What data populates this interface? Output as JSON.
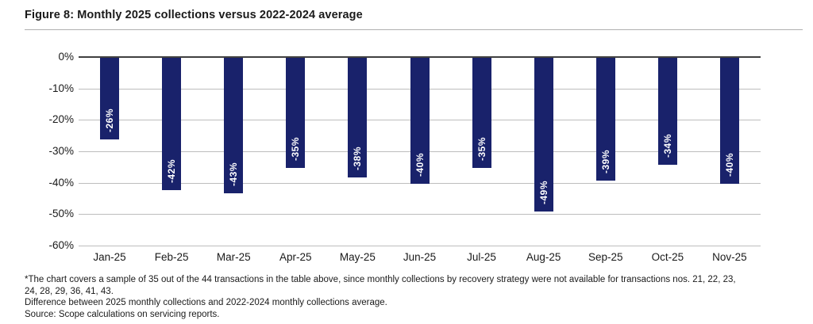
{
  "title": "Figure 8: Monthly 2025 collections versus 2022-2024 average",
  "chart_data": {
    "type": "bar",
    "title": "Figure 8: Monthly 2025 collections versus 2022-2024 average",
    "categories": [
      "Jan-25",
      "Feb-25",
      "Mar-25",
      "Apr-25",
      "May-25",
      "Jun-25",
      "Jul-25",
      "Aug-25",
      "Sep-25",
      "Oct-25",
      "Nov-25"
    ],
    "values": [
      -26,
      -42,
      -43,
      -35,
      -38,
      -40,
      -35,
      -49,
      -39,
      -34,
      -40
    ],
    "bar_labels": [
      "-26%",
      "-42%",
      "-43%",
      "-35%",
      "-38%",
      "-40%",
      "-35%",
      "-49%",
      "-39%",
      "-34%",
      "-40%"
    ],
    "y_ticks": [
      "0%",
      "-10%",
      "-20%",
      "-30%",
      "-40%",
      "-50%",
      "-60%"
    ],
    "y_tick_values": [
      0,
      -10,
      -20,
      -30,
      -40,
      -50,
      -60
    ],
    "ylim": [
      -60,
      0
    ],
    "xlabel": "",
    "ylabel": "",
    "grid": true,
    "legend_position": "none",
    "bar_color": "#19226b",
    "bar_label_color": "#ffffff",
    "gridline_color": "#bdbdbd",
    "zero_line_color": "#404040"
  },
  "footnotes": {
    "line1": "*The chart covers a sample of 35 out of the 44 transactions in the table above, since monthly collections by recovery strategy were not available for transactions nos. 21, 22, 23,",
    "line2": "24, 28, 29, 36, 41, 43.",
    "line3": "Difference between 2025 monthly collections and 2022-2024 monthly collections average.",
    "line4": "Source: Scope calculations on servicing reports."
  }
}
